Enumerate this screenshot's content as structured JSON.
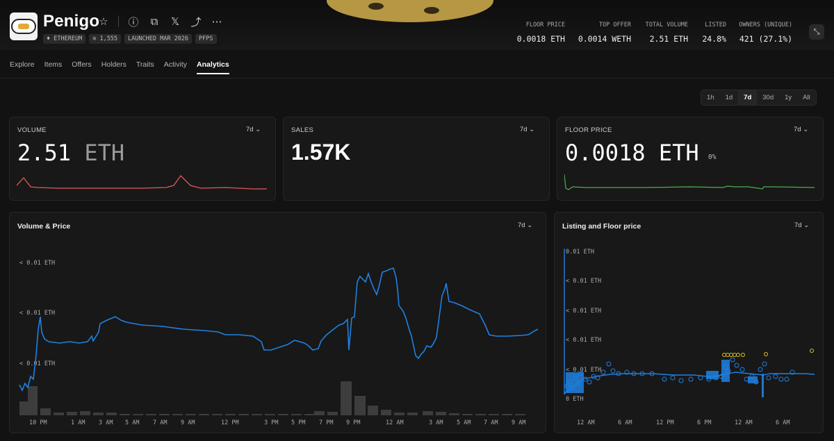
{
  "collection": {
    "name": "Penigo",
    "chips": [
      "ETHEREUM",
      "1,555",
      "LAUNCHED MAR 2026",
      "PFPS"
    ]
  },
  "stats": [
    {
      "label": "FLOOR PRICE",
      "value": "0.0018 ETH"
    },
    {
      "label": "TOP OFFER",
      "value": "0.0014 WETH"
    },
    {
      "label": "TOTAL VOLUME",
      "value": "2.51 ETH"
    },
    {
      "label": "LISTED",
      "value": "24.8%"
    },
    {
      "label": "OWNERS (UNIQUE)",
      "value": "421 (27.1%)"
    }
  ],
  "tabs": [
    "Explore",
    "Items",
    "Offers",
    "Holders",
    "Traits",
    "Activity",
    "Analytics"
  ],
  "active_tab": "Analytics",
  "range_options": [
    "1h",
    "1d",
    "7d",
    "30d",
    "1y",
    "All"
  ],
  "active_range": "7d",
  "cards": {
    "volume": {
      "title": "VOLUME",
      "range": "7d",
      "value": "2.51",
      "unit": "ETH"
    },
    "sales": {
      "title": "SALES",
      "range": "7d",
      "value": "1.57K"
    },
    "floor": {
      "title": "FLOOR PRICE",
      "range": "7d",
      "value": "0.0018 ETH",
      "change": "0%"
    }
  },
  "volume_price": {
    "title": "Volume & Price",
    "range": "7d",
    "y_labels": [
      "< 0.01 ETH",
      "< 0.01 ETH",
      "< 0.01 ETH"
    ],
    "x_labels": [
      "10 PM",
      "1 AM",
      "3 AM",
      "5 AM",
      "7 AM",
      "9 AM",
      "12 PM",
      "3 PM",
      "5 PM",
      "7 PM",
      "9 PM",
      "12 AM",
      "3 AM",
      "5 AM",
      "7 AM",
      "9 AM"
    ],
    "line_color": "#2081e2",
    "bar_color": "#3d3d3d"
  },
  "listing_floor": {
    "title": "Listing and Floor price",
    "range": "7d",
    "y_labels": [
      "0.01 ETH",
      "< 0.01 ETH",
      "< 0.01 ETH",
      "< 0.01 ETH",
      "< 0.01 ETH",
      "0 ETH"
    ],
    "x_labels": [
      "12 AM",
      "6 AM",
      "12 PM",
      "6 PM",
      "12 AM",
      "6 AM"
    ],
    "listing_color": "#2081e2",
    "sale_color": "#e5c420"
  },
  "colors": {
    "sales_spark": "#e05a5a",
    "floor_spark": "#4caf50",
    "accent": "#2081e2"
  }
}
